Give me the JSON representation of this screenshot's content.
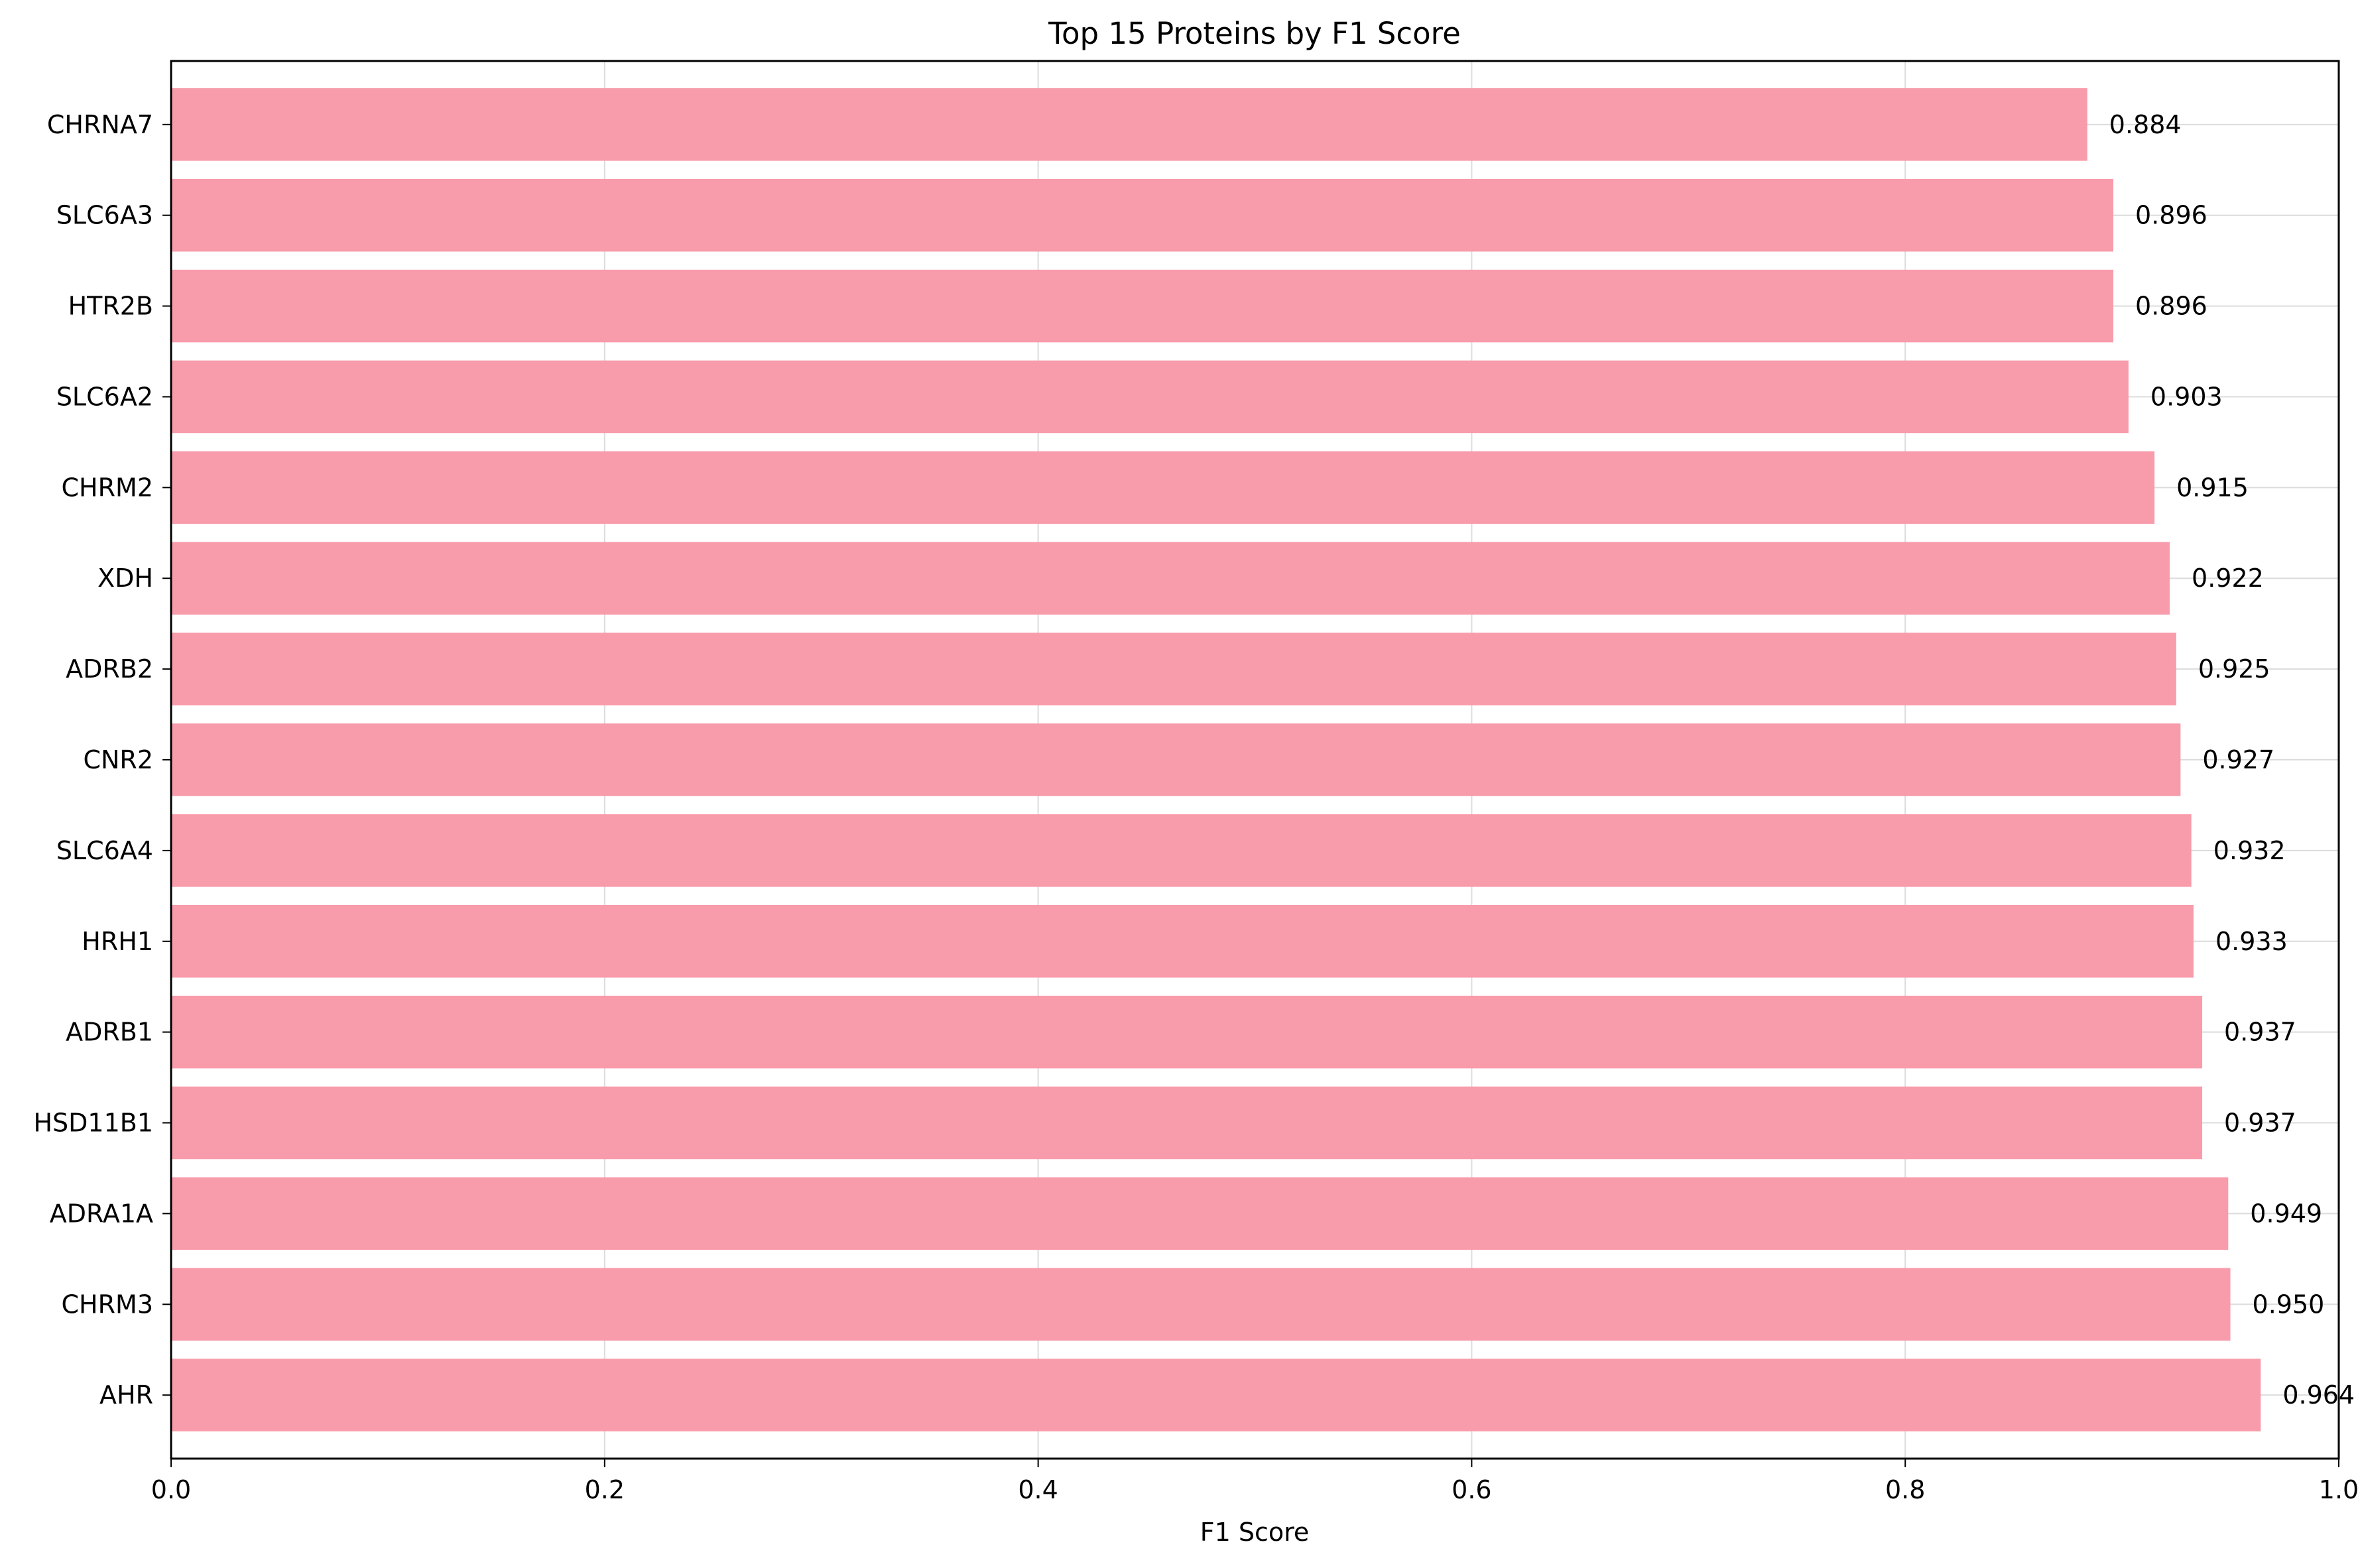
{
  "chart_data": {
    "type": "bar",
    "orientation": "horizontal",
    "title": "Top 15 Proteins by F1 Score",
    "xlabel": "F1 Score",
    "ylabel": "",
    "xlim": [
      0.0,
      1.0
    ],
    "x_ticks": [
      "0.0",
      "0.2",
      "0.4",
      "0.6",
      "0.8",
      "1.0"
    ],
    "grid": true,
    "legend": "none",
    "bar_color": "#f89bab",
    "categories": [
      "AHR",
      "CHRM3",
      "ADRA1A",
      "HSD11B1",
      "ADRB1",
      "HRH1",
      "SLC6A4",
      "CNR2",
      "ADRB2",
      "XDH",
      "CHRM2",
      "SLC6A2",
      "HTR2B",
      "SLC6A3",
      "CHRNA7"
    ],
    "values": [
      0.964,
      0.95,
      0.949,
      0.937,
      0.937,
      0.933,
      0.932,
      0.927,
      0.925,
      0.922,
      0.915,
      0.903,
      0.896,
      0.896,
      0.884
    ],
    "value_labels": [
      "0.964",
      "0.950",
      "0.949",
      "0.937",
      "0.937",
      "0.933",
      "0.932",
      "0.927",
      "0.925",
      "0.922",
      "0.915",
      "0.903",
      "0.896",
      "0.896",
      "0.884"
    ]
  }
}
